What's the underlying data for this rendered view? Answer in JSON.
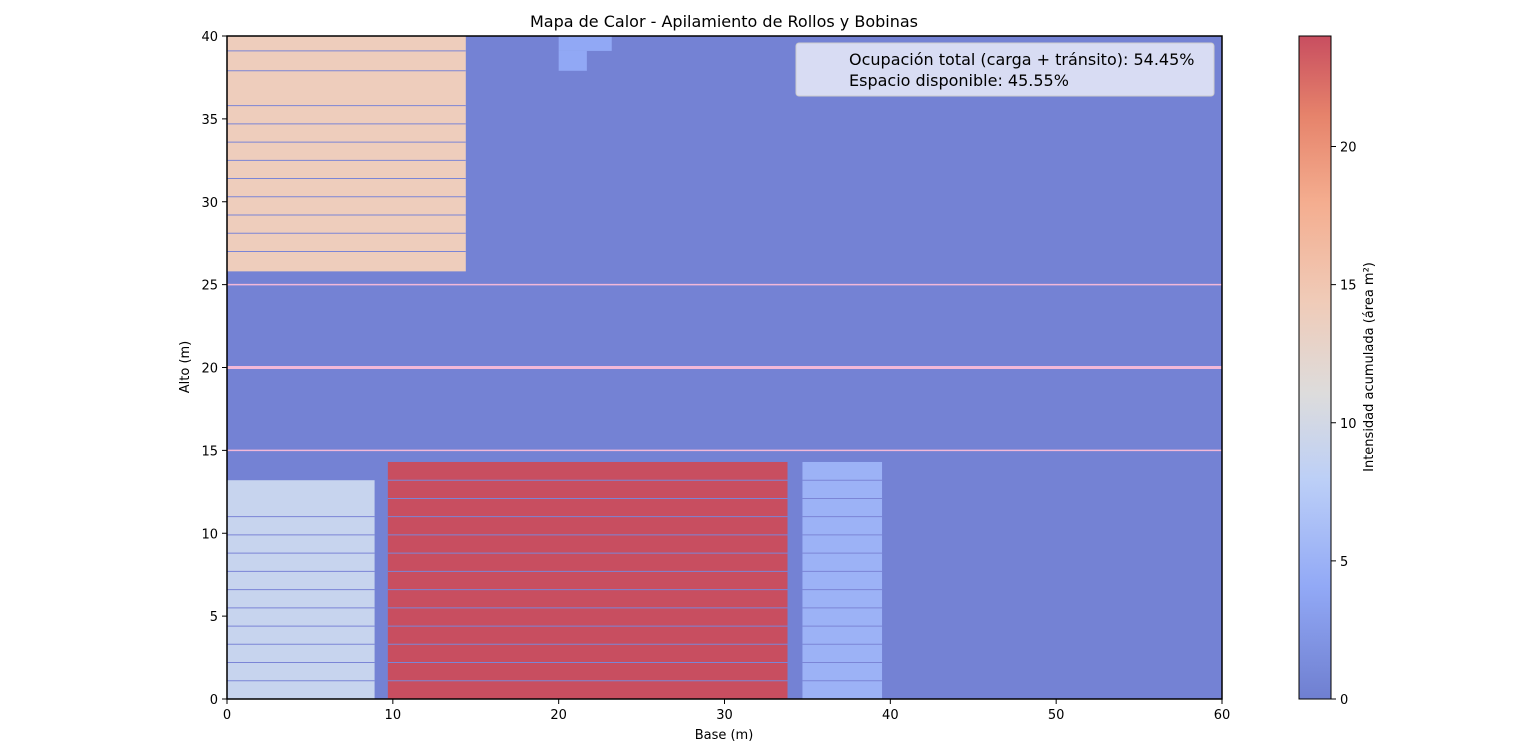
{
  "chart_data": {
    "type": "heatmap",
    "title": "Mapa de Calor - Apilamiento de Rollos y Bobinas",
    "xlabel": "Base (m)",
    "ylabel": "Alto (m)",
    "xlim": [
      0,
      60
    ],
    "ylim": [
      0,
      40
    ],
    "xticks": [
      0,
      10,
      20,
      30,
      40,
      50,
      60
    ],
    "yticks": [
      0,
      5,
      10,
      15,
      20,
      25,
      30,
      35,
      40
    ],
    "background_value": 0,
    "blocks": [
      {
        "x0": 0,
        "x1": 14.4,
        "y0": 25.8,
        "y1": 40,
        "value": 14,
        "row_lines": [
          27,
          28.1,
          29.2,
          30.3,
          31.4,
          32.5,
          33.6,
          34.7,
          35.8,
          37.9,
          39.1
        ]
      },
      {
        "x0": 20,
        "x1": 23.2,
        "y0": 39.1,
        "y1": 40,
        "value": 4
      },
      {
        "x0": 20,
        "x1": 21.7,
        "y0": 37.9,
        "y1": 39.1,
        "value": 4
      },
      {
        "x0": 0,
        "x1": 8.9,
        "y0": 0,
        "y1": 13.2,
        "value": 9,
        "row_lines": [
          1.1,
          2.2,
          3.3,
          4.4,
          5.5,
          6.6,
          7.7,
          8.8,
          9.9,
          11
        ]
      },
      {
        "x0": 9.7,
        "x1": 33.8,
        "y0": 0,
        "y1": 14.3,
        "value": 24,
        "row_lines": [
          1.1,
          2.2,
          3.3,
          4.4,
          5.5,
          6.6,
          7.7,
          8.8,
          9.9,
          11,
          12.1,
          13.2
        ]
      },
      {
        "x0": 34.7,
        "x1": 39.5,
        "y0": 0,
        "y1": 14.3,
        "value": 5,
        "row_lines": [
          1.1,
          2.2,
          3.3,
          4.4,
          5.5,
          6.6,
          7.7,
          8.8,
          9.9,
          11,
          12.1,
          13.2
        ]
      }
    ],
    "transit_lines": [
      15,
      20,
      25
    ],
    "colorbar": {
      "label": "Intensidad acumulada (área m²)",
      "min": 0,
      "max": 24,
      "ticks": [
        0,
        5,
        10,
        15,
        20
      ],
      "colormap": "coolwarm"
    },
    "legend": {
      "position": "top-right",
      "entries": [
        "Ocupación total (carga + tránsito): 54.45%",
        "Espacio disponible: 45.55%"
      ]
    }
  }
}
